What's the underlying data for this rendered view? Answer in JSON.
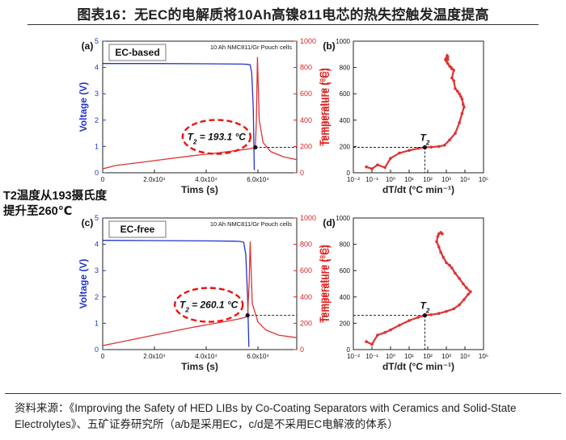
{
  "title": "图表16：无EC的电解质将10Ah高镍811电芯的热失控触发温度提高",
  "side_note": "T2温度从193摄氏度提升至260℃",
  "source": "资料来源：《Improving the Safety of HED LIBs by Co-Coating Separators with Ceramics and Solid-State Electrolytes》、五矿证券研究所（a/b是采用EC，c/d是不采用EC电解液的体系）",
  "colors": {
    "voltage": "#2233cc",
    "temperature": "#dd3333",
    "annotation_circle": "#ee1111"
  },
  "chart_data": [
    {
      "panel": "(a)",
      "type": "line",
      "box_label": "EC-based",
      "cell_label": "10 Ah NMC811/Gr Pouch cells",
      "xlabel": "Tims (s)",
      "ylabel_left": "Voltage (V)",
      "ylabel_right": "Temperature (°C)",
      "x_ticks": [
        "0",
        "2.0x10⁴",
        "4.0x10⁴",
        "6.0x10⁴"
      ],
      "xlim": [
        0,
        75000
      ],
      "ylim_left": [
        0,
        5
      ],
      "ylim_right": [
        0,
        1000
      ],
      "annotation": {
        "T_label": "T",
        "T_sub": "2",
        "T_value": "= 193.1 °C",
        "temperature": 193.1,
        "time": 59000
      },
      "series": [
        {
          "name": "Voltage",
          "axis": "left",
          "x": [
            0,
            20000,
            40000,
            54000,
            56000,
            57000,
            57600,
            58200,
            58600
          ],
          "y": [
            4.15,
            4.15,
            4.14,
            4.13,
            4.12,
            4.1,
            3.8,
            2.5,
            0.1
          ]
        },
        {
          "name": "Temperature",
          "axis": "right",
          "x": [
            0,
            5000,
            15000,
            25000,
            35000,
            45000,
            52000,
            56000,
            58000,
            59000,
            59400,
            59800,
            60500,
            62000,
            65000,
            70000,
            75000
          ],
          "y": [
            30,
            55,
            80,
            105,
            130,
            152,
            170,
            180,
            188,
            193.1,
            400,
            880,
            400,
            230,
            160,
            120,
            100
          ]
        }
      ]
    },
    {
      "panel": "(b)",
      "type": "scatter",
      "xlabel": "dT/dt (°C min⁻¹)",
      "x_scale": "log",
      "xlim": [
        0.01,
        100000
      ],
      "ylim": [
        0,
        1000
      ],
      "x_ticks": [
        "10⁻²",
        "10⁻¹",
        "10⁰",
        "10¹",
        "10²",
        "10³",
        "10⁴",
        "10⁵"
      ],
      "y_ticks": [
        "0",
        "200",
        "400",
        "600",
        "800",
        "1000"
      ],
      "annotation": {
        "T_label": "T",
        "T_sub": "2",
        "dTdt": 70,
        "temperature": 193.1
      },
      "x": [
        0.05,
        0.1,
        0.2,
        0.5,
        1,
        3,
        10,
        30,
        70,
        150,
        400,
        800,
        1500,
        3000,
        5000,
        7000,
        9000,
        8000,
        7000,
        6000,
        5000,
        4000,
        3000,
        2500,
        2000,
        2500,
        2000,
        1800,
        1500,
        1200,
        1000,
        900,
        1000,
        1200,
        1100,
        1000,
        1200
      ],
      "y": [
        45,
        30,
        60,
        40,
        110,
        150,
        170,
        185,
        193,
        195,
        200,
        210,
        250,
        300,
        380,
        450,
        500,
        520,
        560,
        580,
        600,
        620,
        640,
        700,
        720,
        780,
        790,
        800,
        810,
        830,
        850,
        860,
        870,
        880,
        890,
        870,
        860
      ]
    },
    {
      "panel": "(c)",
      "type": "line",
      "box_label": "EC-free",
      "cell_label": "10 Ah NMC811/Gr Pouch cells",
      "xlabel": "Tims (s)",
      "ylabel_left": "Voltage (V)",
      "ylabel_right": "Temperature (°C)",
      "x_ticks": [
        "0",
        "2.0x10⁴",
        "4.0x10⁴",
        "6.0x10⁴"
      ],
      "xlim": [
        0,
        75000
      ],
      "ylim_left": [
        0,
        5
      ],
      "ylim_right": [
        0,
        1000
      ],
      "annotation": {
        "T_label": "T",
        "T_sub": "2",
        "T_value": "= 260.1 °C",
        "temperature": 260.1,
        "time": 56000
      },
      "series": [
        {
          "name": "Voltage",
          "axis": "left",
          "x": [
            0,
            20000,
            40000,
            50000,
            53000,
            54500,
            55300,
            56000,
            56500
          ],
          "y": [
            4.15,
            4.14,
            4.13,
            4.12,
            4.11,
            4.08,
            3.6,
            2.0,
            0.1
          ]
        },
        {
          "name": "Temperature",
          "axis": "right",
          "x": [
            0,
            5000,
            15000,
            25000,
            35000,
            45000,
            52000,
            55000,
            56000,
            56600,
            57000,
            57800,
            60000,
            63000,
            68000,
            75000
          ],
          "y": [
            30,
            50,
            90,
            130,
            170,
            205,
            230,
            245,
            260.1,
            500,
            820,
            350,
            210,
            150,
            110,
            90
          ]
        }
      ]
    },
    {
      "panel": "(d)",
      "type": "scatter",
      "xlabel": "dT/dt (°C min⁻¹)",
      "x_scale": "log",
      "xlim": [
        0.01,
        100000
      ],
      "ylim": [
        0,
        1000
      ],
      "x_ticks": [
        "10⁻²",
        "10⁻¹",
        "10⁰",
        "10¹",
        "10²",
        "10³",
        "10⁴",
        "10⁵"
      ],
      "y_ticks": [
        "0",
        "200",
        "400",
        "600",
        "800",
        "1000"
      ],
      "annotation": {
        "T_label": "T",
        "T_sub": "2",
        "dTdt": 70,
        "temperature": 260.1
      },
      "x": [
        0.05,
        0.1,
        0.2,
        0.5,
        1,
        3,
        10,
        30,
        70,
        150,
        400,
        1000,
        2500,
        5000,
        9000,
        15000,
        20000,
        12000,
        8000,
        5000,
        3000,
        2000,
        1500,
        1000,
        700,
        500,
        400,
        300,
        350,
        400,
        500,
        600
      ],
      "y": [
        60,
        40,
        110,
        130,
        150,
        185,
        220,
        245,
        260,
        265,
        275,
        290,
        310,
        340,
        380,
        420,
        440,
        470,
        500,
        540,
        580,
        620,
        640,
        660,
        700,
        740,
        780,
        820,
        860,
        880,
        890,
        880
      ]
    }
  ]
}
